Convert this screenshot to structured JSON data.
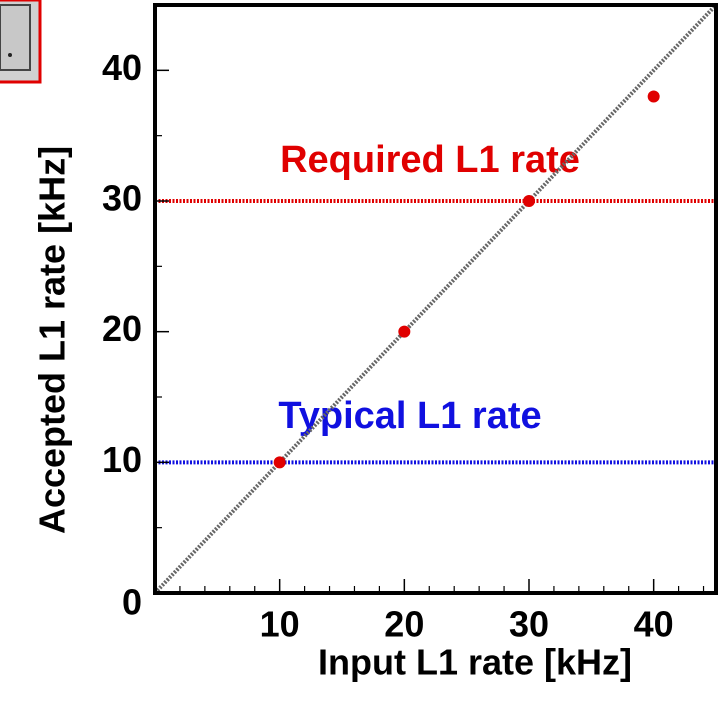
{
  "chart_data": {
    "type": "scatter",
    "x_label": "Input  L1 rate [kHz]",
    "y_label": "Accepted  L1 rate [kHz]",
    "x": [
      10,
      20,
      30,
      40
    ],
    "series": [
      {
        "color": "#e00000",
        "values": [
          10,
          20,
          30,
          38
        ]
      }
    ],
    "xlim": [
      0,
      45
    ],
    "ylim": [
      0,
      45
    ],
    "xticks": [
      10,
      20,
      30,
      40
    ],
    "yticks": [
      0,
      10,
      20,
      30,
      40
    ],
    "x_minor_ticks": [
      2,
      4,
      6,
      8,
      12,
      14,
      16,
      18,
      22,
      24,
      26,
      28,
      32,
      34,
      36,
      38,
      42,
      44
    ],
    "y_minor_ticks": [
      5,
      15,
      25,
      35,
      45
    ],
    "diagonal": true,
    "hlines": [
      {
        "y": 30,
        "color": "#e00000"
      },
      {
        "y": 10,
        "color": "#1010e0"
      }
    ],
    "annotations": [
      {
        "text": "Required  L1 rate",
        "color": "#e00000"
      },
      {
        "text": "Typical  L1 rate",
        "color": "#1010e0"
      }
    ]
  }
}
